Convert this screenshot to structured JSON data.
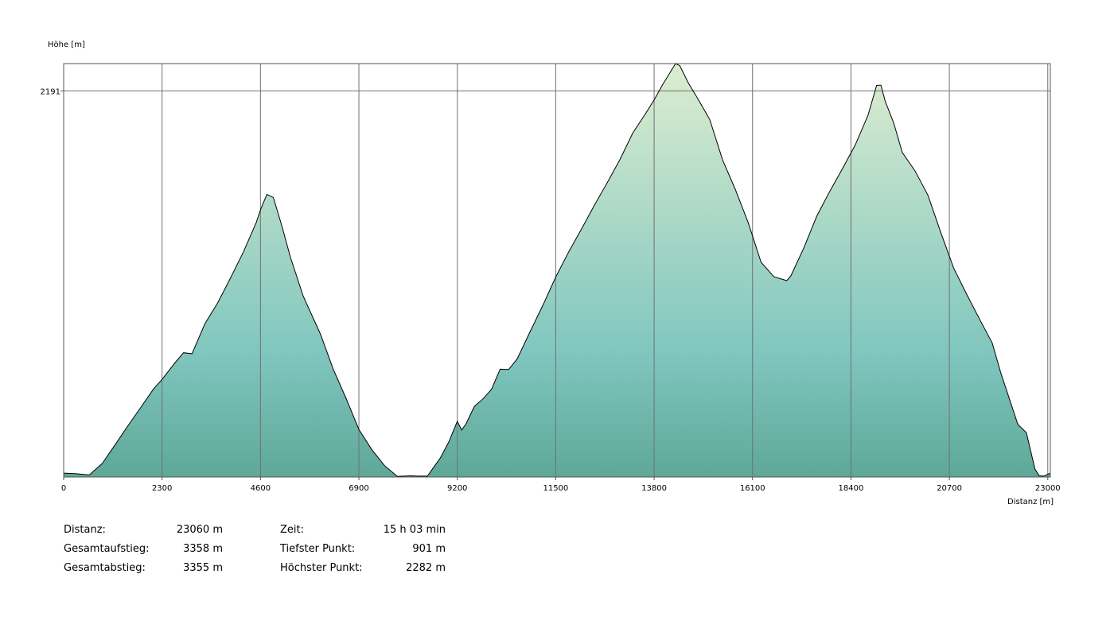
{
  "chart_data": {
    "type": "area",
    "xlabel": "Distanz [m]",
    "ylabel": "Höhe [m]",
    "xlim": [
      0,
      23060
    ],
    "ylim": [
      901,
      2282
    ],
    "x_ticks": [
      0,
      2300,
      4600,
      6900,
      9200,
      11500,
      13800,
      16100,
      18400,
      20700,
      23000
    ],
    "y_ticks": [
      2191
    ],
    "grid": true,
    "colors": {
      "top": "#dcedd0",
      "mid": "#80c6bf",
      "bottom": "#5ea898",
      "line": "#000000",
      "grid": "#707070",
      "frame": "#555555"
    },
    "series": [
      {
        "x": [
          0,
          300,
          600,
          900,
          1200,
          1500,
          1800,
          2100,
          2300,
          2600,
          2800,
          3000,
          3300,
          3600,
          3900,
          4200,
          4500,
          4600,
          4750,
          4900,
          5100,
          5300,
          5600,
          6000,
          6300,
          6600,
          6900,
          7200,
          7500,
          7800,
          8100,
          8300,
          8500,
          8800,
          9000,
          9200,
          9300,
          9400,
          9600,
          9800,
          10000,
          10200,
          10400,
          10600,
          10900,
          11200,
          11500,
          11800,
          12100,
          12400,
          12700,
          13000,
          13300,
          13600,
          13800,
          14000,
          14200,
          14300,
          14400,
          14600,
          14800,
          15100,
          15400,
          15700,
          16000,
          16300,
          16600,
          16900,
          17000,
          17300,
          17600,
          17900,
          18200,
          18500,
          18800,
          19000,
          19100,
          19200,
          19400,
          19600,
          19900,
          20200,
          20500,
          20800,
          21100,
          21400,
          21700,
          21900,
          22100,
          22300,
          22500,
          22700,
          22800,
          22900,
          23060
        ],
        "y": [
          914,
          912,
          908,
          946,
          1008,
          1072,
          1133,
          1195,
          1227,
          1282,
          1316,
          1313,
          1413,
          1483,
          1566,
          1652,
          1751,
          1794,
          1845,
          1835,
          1740,
          1635,
          1505,
          1379,
          1261,
          1164,
          1060,
          993,
          939,
          903,
          905,
          904,
          904,
          964,
          1018,
          1087,
          1058,
          1078,
          1137,
          1162,
          1194,
          1261,
          1260,
          1296,
          1386,
          1475,
          1569,
          1652,
          1729,
          1808,
          1883,
          1961,
          2050,
          2115,
          2161,
          2212,
          2259,
          2282,
          2275,
          2217,
          2170,
          2095,
          1960,
          1861,
          1750,
          1618,
          1570,
          1557,
          1574,
          1667,
          1772,
          1854,
          1931,
          2010,
          2110,
          2209,
          2210,
          2157,
          2083,
          1985,
          1923,
          1842,
          1718,
          1599,
          1513,
          1430,
          1349,
          1250,
          1163,
          1077,
          1049,
          928,
          905,
          904,
          914
        ]
      }
    ]
  },
  "labels": {
    "y_axis_title": "Höhe [m]",
    "x_axis_title": "Distanz [m]"
  },
  "stats": {
    "left": [
      {
        "label": "Distanz:",
        "value": "23060 m"
      },
      {
        "label": "Gesamtaufstieg:",
        "value": "3358 m"
      },
      {
        "label": "Gesamtabstieg:",
        "value": "3355 m"
      }
    ],
    "right": [
      {
        "label": "Zeit:",
        "value": "15 h 03 min"
      },
      {
        "label": "Tiefster Punkt:",
        "value": "901 m"
      },
      {
        "label": "Höchster Punkt:",
        "value": "2282 m"
      }
    ]
  }
}
